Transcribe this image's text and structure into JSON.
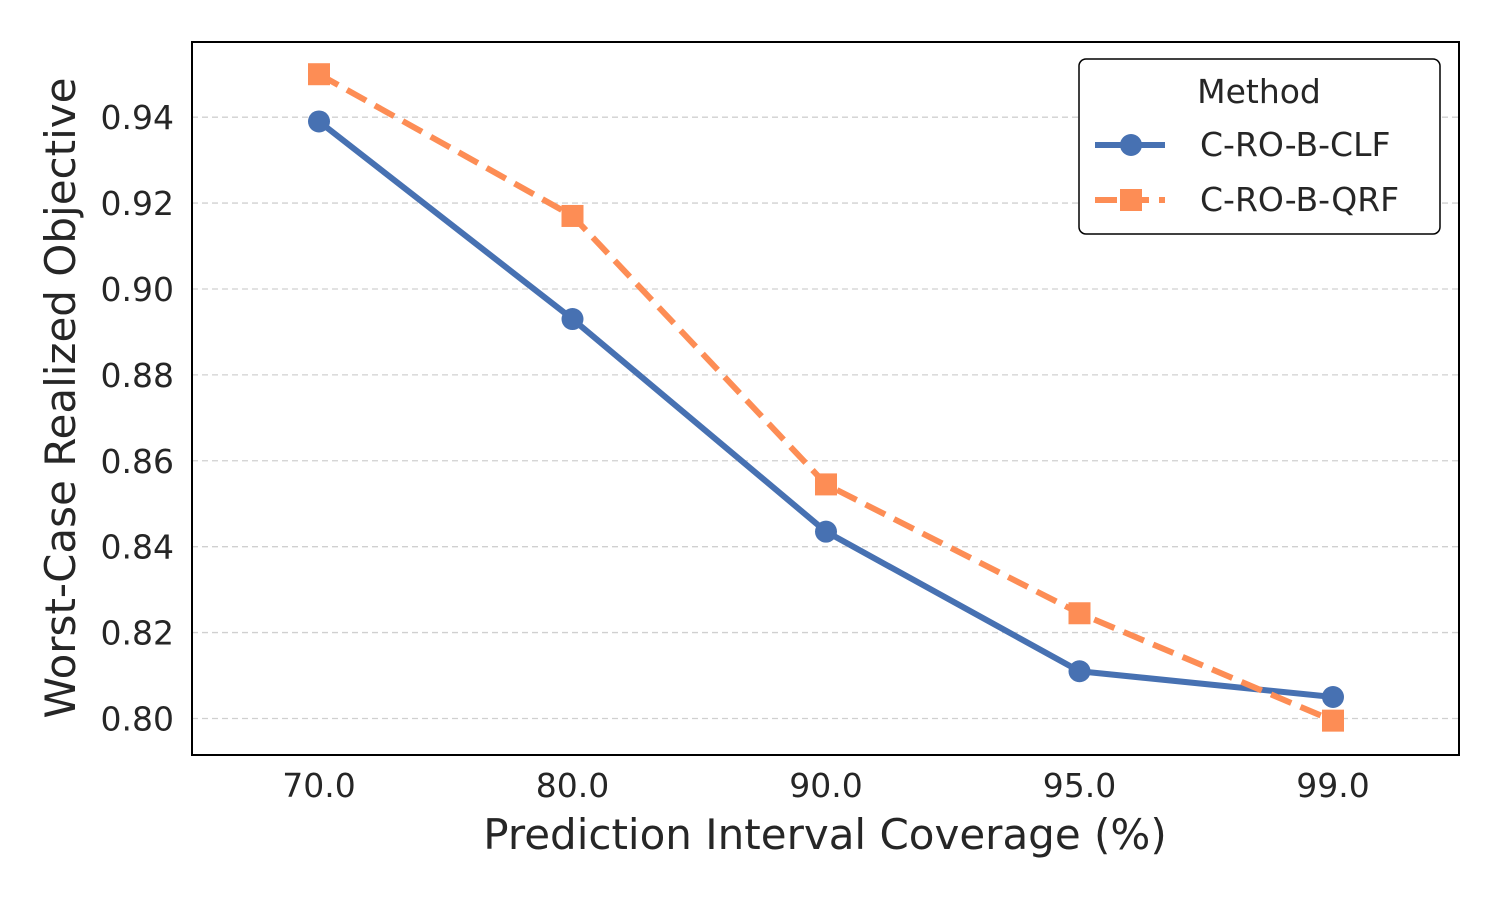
{
  "chart_data": {
    "type": "line",
    "title": "",
    "xlabel": "Prediction Interval Coverage (%)",
    "ylabel": "Worst-Case Realized Objective",
    "categories": [
      "70.0",
      "80.0",
      "90.0",
      "95.0",
      "99.0"
    ],
    "yticks": [
      "0.80",
      "0.82",
      "0.84",
      "0.86",
      "0.88",
      "0.90",
      "0.92",
      "0.94"
    ],
    "ylim": [
      0.7915,
      0.9575
    ],
    "grid": "horizontal-dashed",
    "legend": {
      "title": "Method",
      "position": "top-right"
    },
    "series": [
      {
        "name": "C-RO-B-CLF",
        "values": [
          0.939,
          0.893,
          0.8435,
          0.811,
          0.805
        ],
        "color": "#4771b2",
        "marker": "circle",
        "linestyle": "solid"
      },
      {
        "name": "C-RO-B-QRF",
        "values": [
          0.95,
          0.917,
          0.8545,
          0.8245,
          0.7995
        ],
        "color": "#fd8d55",
        "marker": "square",
        "linestyle": "dashed"
      }
    ]
  }
}
